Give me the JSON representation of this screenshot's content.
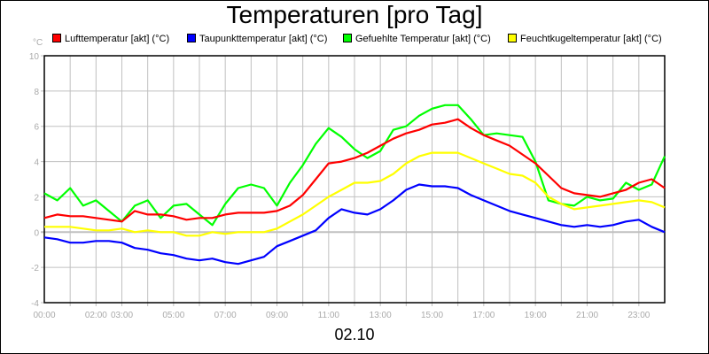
{
  "chart_data": {
    "type": "line",
    "title": "Temperaturen [pro Tag]",
    "ylabel": "°C",
    "xlabel": "02.10",
    "ylim": [
      -4,
      10
    ],
    "yticks": [
      "10",
      "8",
      "6",
      "4",
      "2",
      "0",
      "-2",
      "-4"
    ],
    "xlim_hours": [
      0,
      24
    ],
    "xticks": [
      {
        "h": 0,
        "label": "00:00"
      },
      {
        "h": 2,
        "label": "02:00"
      },
      {
        "h": 3,
        "label": "03:00"
      },
      {
        "h": 5,
        "label": "05:00"
      },
      {
        "h": 7,
        "label": "07:00"
      },
      {
        "h": 9,
        "label": "09:00"
      },
      {
        "h": 11,
        "label": "11:00"
      },
      {
        "h": 13,
        "label": "13:00"
      },
      {
        "h": 15,
        "label": "15:00"
      },
      {
        "h": 17,
        "label": "17:00"
      },
      {
        "h": 19,
        "label": "19:00"
      },
      {
        "h": 21,
        "label": "21:00"
      },
      {
        "h": 23,
        "label": "23:00"
      }
    ],
    "grid": true,
    "legend_position": "top",
    "x_step_hours": 0.5,
    "series": [
      {
        "name": "Lufttemperatur [akt] (°C)",
        "color": "#ff0000",
        "values": [
          0.8,
          1.0,
          0.9,
          0.9,
          0.8,
          0.7,
          0.6,
          1.2,
          1.0,
          1.0,
          0.9,
          0.7,
          0.8,
          0.8,
          1.0,
          1.1,
          1.1,
          1.1,
          1.2,
          1.5,
          2.1,
          3.0,
          3.9,
          4.0,
          4.2,
          4.5,
          4.9,
          5.3,
          5.6,
          5.8,
          6.1,
          6.2,
          6.4,
          5.9,
          5.5,
          5.2,
          4.9,
          4.4,
          3.9,
          3.2,
          2.5,
          2.2,
          2.1,
          2.0,
          2.2,
          2.4,
          2.8,
          3.0,
          2.5
        ]
      },
      {
        "name": "Taupunkttemperatur [akt] (°C)",
        "color": "#0000ff",
        "values": [
          -0.3,
          -0.4,
          -0.6,
          -0.6,
          -0.5,
          -0.5,
          -0.6,
          -0.9,
          -1.0,
          -1.2,
          -1.3,
          -1.5,
          -1.6,
          -1.5,
          -1.7,
          -1.8,
          -1.6,
          -1.4,
          -0.8,
          -0.5,
          -0.2,
          0.1,
          0.8,
          1.3,
          1.1,
          1.0,
          1.3,
          1.8,
          2.4,
          2.7,
          2.6,
          2.6,
          2.5,
          2.1,
          1.8,
          1.5,
          1.2,
          1.0,
          0.8,
          0.6,
          0.4,
          0.3,
          0.4,
          0.3,
          0.4,
          0.6,
          0.7,
          0.3,
          0.0
        ]
      },
      {
        "name": "Gefuehlte Temperatur [akt] (°C)",
        "color": "#00ff00",
        "values": [
          2.2,
          1.8,
          2.5,
          1.5,
          1.8,
          1.2,
          0.6,
          1.5,
          1.8,
          0.8,
          1.5,
          1.6,
          1.0,
          0.4,
          1.6,
          2.5,
          2.7,
          2.5,
          1.5,
          2.8,
          3.8,
          5.0,
          5.9,
          5.4,
          4.7,
          4.2,
          4.6,
          5.8,
          6.0,
          6.6,
          7.0,
          7.2,
          7.2,
          6.4,
          5.5,
          5.6,
          5.5,
          5.4,
          4.0,
          1.8,
          1.6,
          1.5,
          2.0,
          1.8,
          1.9,
          2.8,
          2.4,
          2.7,
          4.3
        ]
      },
      {
        "name": "Feuchtkugeltemperatur [akt] (°C)",
        "color": "#ffff00",
        "values": [
          0.3,
          0.3,
          0.3,
          0.2,
          0.1,
          0.1,
          0.2,
          0.0,
          0.1,
          0.0,
          0.0,
          -0.2,
          -0.2,
          0.0,
          -0.1,
          0.0,
          0.0,
          0.0,
          0.2,
          0.6,
          1.0,
          1.5,
          2.0,
          2.4,
          2.8,
          2.8,
          2.9,
          3.3,
          3.9,
          4.3,
          4.5,
          4.5,
          4.5,
          4.2,
          3.9,
          3.6,
          3.3,
          3.2,
          2.8,
          2.0,
          1.6,
          1.3,
          1.4,
          1.5,
          1.6,
          1.7,
          1.8,
          1.7,
          1.4
        ]
      }
    ]
  }
}
